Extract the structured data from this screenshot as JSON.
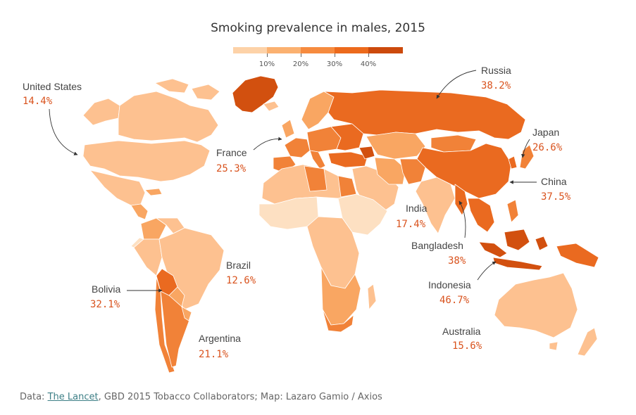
{
  "title": "Smoking prevalence in males, 2015",
  "legend": {
    "colors": [
      "#fdd2a8",
      "#fbb170",
      "#f68b3f",
      "#ec6a1c",
      "#cc4a0c"
    ],
    "ticks": [
      "10%",
      "20%",
      "30%",
      "40%"
    ]
  },
  "colors": {
    "ocean": "#ffffff",
    "border": "#ffffff",
    "c0": "#fde0c2",
    "c1": "#fdc190",
    "c2": "#f9a662",
    "c3": "#f18238",
    "c4": "#ea6a20",
    "c5": "#d2500f"
  },
  "chart_data": {
    "type": "choropleth",
    "title": "Smoking prevalence in males, 2015",
    "metric": "male smoking prevalence (%)",
    "annotations": [
      {
        "name": "United States",
        "value": "14.4%"
      },
      {
        "name": "Russia",
        "value": "38.2%"
      },
      {
        "name": "Japan",
        "value": "26.6%"
      },
      {
        "name": "France",
        "value": "25.3%"
      },
      {
        "name": "China",
        "value": "37.5%"
      },
      {
        "name": "India",
        "value": "17.4%"
      },
      {
        "name": "Bangladesh",
        "value": "38%"
      },
      {
        "name": "Brazil",
        "value": "12.6%"
      },
      {
        "name": "Bolivia",
        "value": "32.1%"
      },
      {
        "name": "Indonesia",
        "value": "46.7%"
      },
      {
        "name": "Argentina",
        "value": "21.1%"
      },
      {
        "name": "Australia",
        "value": "15.6%"
      }
    ]
  },
  "source": {
    "prefix": "Data: ",
    "link": "The Lancet",
    "rest": ", GBD 2015 Tobacco Collaborators; Map: Lazaro Gamio / Axios"
  }
}
